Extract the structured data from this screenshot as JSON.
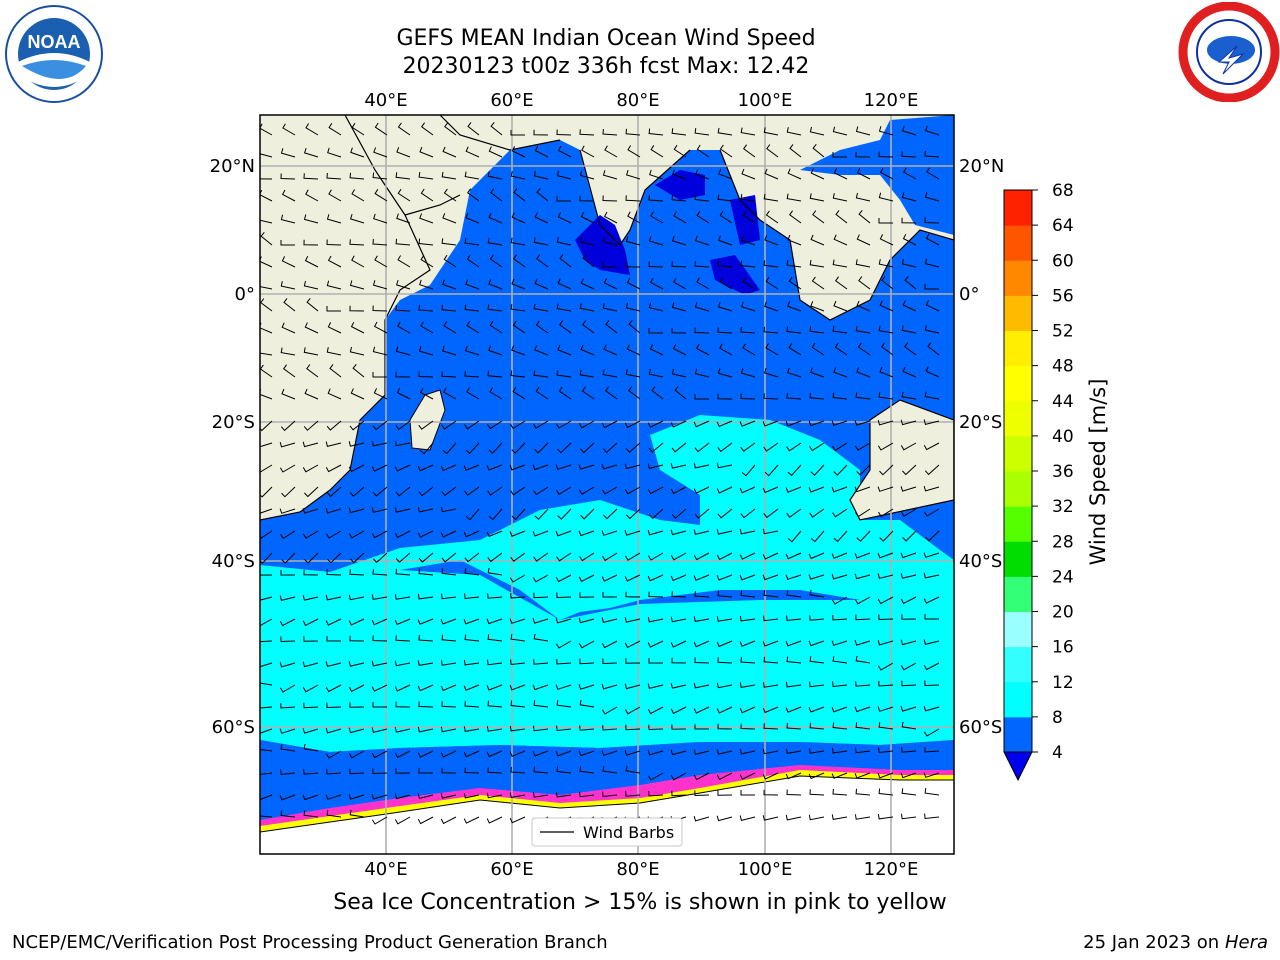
{
  "header": {
    "title_line1": "GEFS MEAN Indian Ocean Wind Speed",
    "title_line2": "20230123 t00z 336h fcst   Max: 12.42"
  },
  "logos": {
    "left": {
      "name": "noaa-logo",
      "text": "NOAA",
      "ring_text": "NATIONAL OCEANIC AND ATMOSPHERIC ADMINISTRATION · U.S. DEPARTMENT OF COMMERCE"
    },
    "right": {
      "name": "nws-logo",
      "ring_text": "NATIONAL WEATHER SERVICE"
    }
  },
  "map": {
    "lon_ticks": [
      "40°E",
      "60°E",
      "80°E",
      "100°E",
      "120°E"
    ],
    "lat_ticks": [
      "20°N",
      "0°",
      "20°S",
      "40°S",
      "60°S"
    ],
    "legend_label": "Wind Barbs",
    "colors": {
      "land": "#efefde",
      "ocean_low": "#0066ff",
      "ocean_mid": "#00ffff",
      "ocean_calm": "#0000dd",
      "ocean_light": "#33ccff",
      "ice": "#ff33cc"
    }
  },
  "colorbar": {
    "label": "Wind Speed [m/s]",
    "ticks": [
      "4",
      "8",
      "12",
      "16",
      "20",
      "24",
      "28",
      "32",
      "36",
      "40",
      "44",
      "48",
      "52",
      "56",
      "60",
      "64",
      "68"
    ],
    "colors": [
      "#0066ff",
      "#00ffff",
      "#33ffff",
      "#99ffff",
      "#33ff77",
      "#00dd00",
      "#55ff00",
      "#aaff00",
      "#ccff00",
      "#eeff00",
      "#ffff00",
      "#ffee00",
      "#ffbb00",
      "#ff8800",
      "#ff5500",
      "#ff2200"
    ],
    "under_color": "#0000ee"
  },
  "captions": {
    "sea_ice": "Sea Ice Concentration > 15% is shown in pink to yellow",
    "footer_left": "NCEP/EMC/Verification Post Processing Product Generation Branch",
    "footer_right_date": "25 Jan 2023 on",
    "footer_right_system": "Hera"
  }
}
